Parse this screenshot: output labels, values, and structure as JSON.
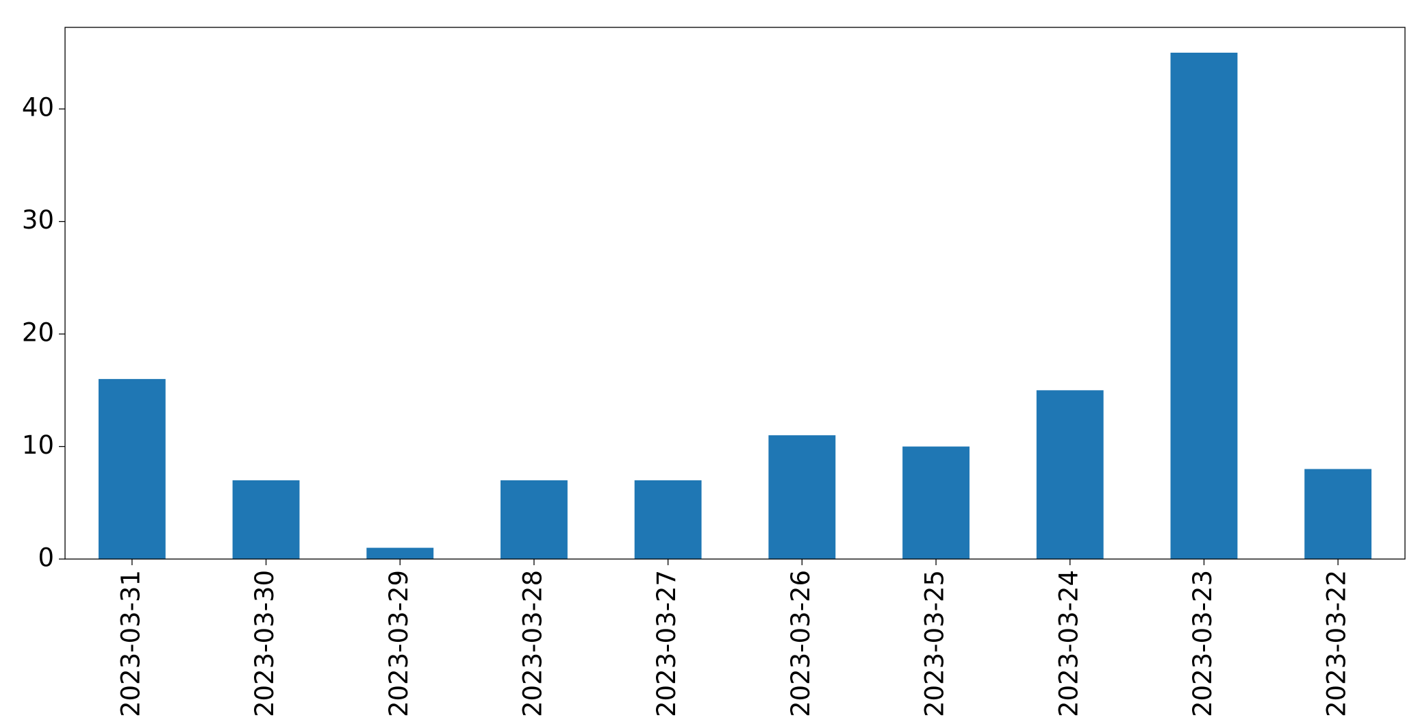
{
  "chart_data": {
    "type": "bar",
    "categories": [
      "2023-03-31",
      "2023-03-30",
      "2023-03-29",
      "2023-03-28",
      "2023-03-27",
      "2023-03-26",
      "2023-03-25",
      "2023-03-24",
      "2023-03-23",
      "2023-03-22"
    ],
    "values": [
      16,
      7,
      1,
      7,
      7,
      11,
      10,
      15,
      45,
      8
    ],
    "color": "#1f77b4",
    "ylim": [
      0,
      47.25
    ],
    "yticks": [
      0,
      10,
      20,
      30,
      40
    ],
    "grid": false
  }
}
